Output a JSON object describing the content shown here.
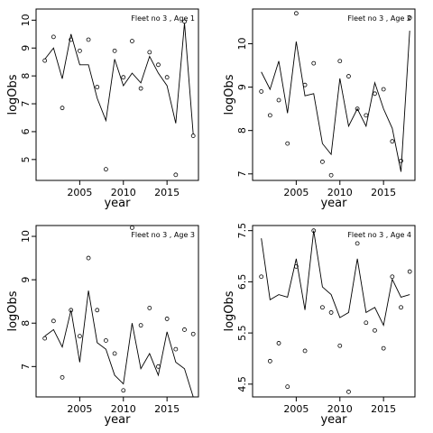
{
  "chart_data": [
    {
      "type": "scatter",
      "title": "Fleet no 3 , Age 1",
      "xlabel": "year",
      "ylabel": "logObs",
      "xlim": [
        2000,
        2018.6
      ],
      "ylim": [
        4.25,
        10.4
      ],
      "xticks": [
        2005,
        2010,
        2015
      ],
      "yticks": [
        5,
        6,
        7,
        8,
        9,
        10
      ],
      "line": {
        "x": [
          2001,
          2002,
          2003,
          2004,
          2005,
          2006,
          2007,
          2008,
          2009,
          2010,
          2011,
          2012,
          2013,
          2014,
          2015,
          2016,
          2017,
          2018
        ],
        "y": [
          8.6,
          9.0,
          7.9,
          9.5,
          8.4,
          8.4,
          7.2,
          6.4,
          8.6,
          7.65,
          8.1,
          7.75,
          8.7,
          8.1,
          7.65,
          6.3,
          9.9,
          5.9
        ]
      },
      "points": {
        "x": [
          2001,
          2002,
          2003,
          2004,
          2005,
          2006,
          2007,
          2008,
          2009,
          2010,
          2011,
          2012,
          2013,
          2014,
          2015,
          2016,
          2017,
          2018
        ],
        "y": [
          8.55,
          9.4,
          6.85,
          9.3,
          8.9,
          9.3,
          7.6,
          4.65,
          8.9,
          7.95,
          9.25,
          7.55,
          8.85,
          8.4,
          7.95,
          4.45,
          9.95,
          5.85
        ]
      }
    },
    {
      "type": "scatter",
      "title": "Fleet no 3 , Age 2",
      "xlabel": "year",
      "ylabel": "logObs",
      "xlim": [
        2000,
        2018.6
      ],
      "ylim": [
        6.85,
        10.8
      ],
      "xticks": [
        2005,
        2010,
        2015
      ],
      "yticks": [
        7,
        8,
        9,
        10
      ],
      "line": {
        "x": [
          2001,
          2002,
          2003,
          2004,
          2005,
          2006,
          2007,
          2008,
          2009,
          2010,
          2011,
          2012,
          2013,
          2014,
          2015,
          2016,
          2017,
          2018
        ],
        "y": [
          9.35,
          8.95,
          9.6,
          8.4,
          10.05,
          8.8,
          8.85,
          7.7,
          7.45,
          9.2,
          8.1,
          8.5,
          8.1,
          9.1,
          8.5,
          8.05,
          7.05,
          10.3
        ]
      },
      "points": {
        "x": [
          2001,
          2002,
          2003,
          2004,
          2005,
          2006,
          2007,
          2008,
          2009,
          2010,
          2011,
          2012,
          2013,
          2014,
          2015,
          2016,
          2017,
          2018
        ],
        "y": [
          8.9,
          8.35,
          8.7,
          7.7,
          10.7,
          9.05,
          9.55,
          7.28,
          6.97,
          9.6,
          9.25,
          8.5,
          8.35,
          8.85,
          8.95,
          7.75,
          7.3,
          10.6
        ]
      }
    },
    {
      "type": "scatter",
      "title": "Fleet no 3 , Age 3",
      "xlabel": "year",
      "ylabel": "logObs",
      "xlim": [
        2000,
        2018.6
      ],
      "ylim": [
        6.3,
        10.25
      ],
      "xticks": [
        2005,
        2010,
        2015
      ],
      "yticks": [
        7,
        8,
        9,
        10
      ],
      "line": {
        "x": [
          2001,
          2002,
          2003,
          2004,
          2005,
          2006,
          2007,
          2008,
          2009,
          2010,
          2011,
          2012,
          2013,
          2014,
          2015,
          2016,
          2017,
          2018
        ],
        "y": [
          7.7,
          7.85,
          7.45,
          8.3,
          7.1,
          8.75,
          7.55,
          7.4,
          6.8,
          6.6,
          8.0,
          6.95,
          7.3,
          6.8,
          7.8,
          7.1,
          6.95,
          6.3
        ]
      },
      "points": {
        "x": [
          2001,
          2002,
          2003,
          2004,
          2005,
          2006,
          2007,
          2008,
          2009,
          2010,
          2011,
          2012,
          2013,
          2014,
          2015,
          2016,
          2017,
          2018
        ],
        "y": [
          7.65,
          8.05,
          6.75,
          8.3,
          7.7,
          9.5,
          8.3,
          7.6,
          7.3,
          6.45,
          10.2,
          7.95,
          8.35,
          7.0,
          8.1,
          7.4,
          7.85,
          7.75
        ]
      }
    },
    {
      "type": "scatter",
      "title": "Fleet no 3 , Age 4",
      "xlabel": "year",
      "ylabel": "logObs",
      "xlim": [
        2000,
        2018.6
      ],
      "ylim": [
        4.25,
        7.6
      ],
      "xticks": [
        2005,
        2010,
        2015
      ],
      "yticks": [
        4.5,
        5.5,
        6.5,
        7.5
      ],
      "line": {
        "x": [
          2001,
          2002,
          2003,
          2004,
          2005,
          2006,
          2007,
          2008,
          2009,
          2010,
          2011,
          2012,
          2013,
          2014,
          2015,
          2016,
          2017,
          2018
        ],
        "y": [
          7.35,
          6.15,
          6.25,
          6.2,
          6.95,
          5.95,
          7.5,
          6.4,
          6.25,
          5.8,
          5.9,
          6.95,
          5.9,
          6.0,
          5.65,
          6.55,
          6.2,
          6.25
        ]
      },
      "points": {
        "x": [
          2001,
          2002,
          2003,
          2004,
          2005,
          2006,
          2007,
          2008,
          2009,
          2010,
          2011,
          2012,
          2013,
          2014,
          2015,
          2016,
          2017,
          2018
        ],
        "y": [
          6.6,
          4.95,
          5.3,
          4.45,
          6.8,
          5.15,
          7.5,
          6.0,
          5.9,
          5.25,
          4.35,
          7.25,
          5.7,
          5.55,
          5.2,
          6.6,
          6.0,
          6.7
        ]
      }
    }
  ]
}
